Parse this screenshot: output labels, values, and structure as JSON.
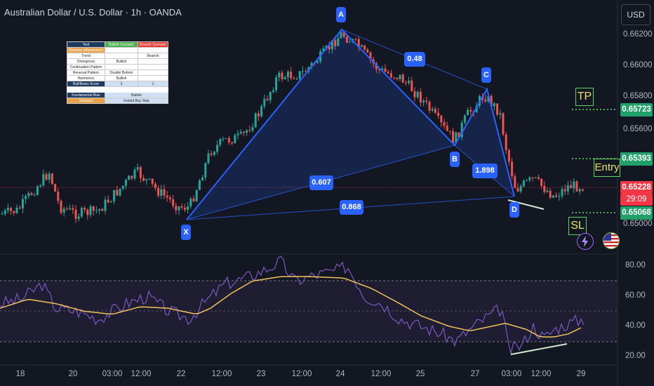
{
  "header": {
    "title": "Australian Dollar / U.S. Dollar · 1h · OANDA",
    "currency": "USD"
  },
  "price_axis": {
    "labels": [
      "0.66200",
      "0.66000",
      "0.65800",
      "0.65600",
      "0.65000"
    ],
    "tags": [
      {
        "text": "0.65723",
        "color": "#22a06b"
      },
      {
        "text": "0.65393",
        "color": "#22a06b"
      },
      {
        "text": "0.65228",
        "color": "#f23645"
      },
      {
        "text": "29:09",
        "color": "#f23645"
      },
      {
        "text": "0.65068",
        "color": "#22a06b"
      }
    ]
  },
  "rsi_axis": {
    "labels": [
      "80.00",
      "60.00",
      "40.00",
      "20.00"
    ]
  },
  "time_axis": {
    "labels": [
      "18",
      "20",
      "03:00",
      "12:00",
      "22",
      "12:00",
      "23",
      "12:00",
      "24",
      "12:00",
      "25",
      "27",
      "03:00",
      "12:00",
      "29"
    ]
  },
  "pattern_points": [
    "X",
    "A",
    "B",
    "C",
    "D"
  ],
  "ratios": [
    "0.48",
    "0.607",
    "1.898",
    "0.868"
  ],
  "trade_labels": {
    "tp": "TP",
    "entry": "Entry",
    "sl": "SL"
  },
  "icons": {
    "lightning": "lightning-icon",
    "flag": "us-flag-icon"
  },
  "colors": {
    "up": "#26a69a",
    "down": "#ef5350",
    "pattern": "#2962ff",
    "rsi": "#7e57c2",
    "rsi_ma": "#f0c35a"
  },
  "table": {
    "header": [
      "Tool",
      "Bullish Scenario",
      "Bearish Scenario"
    ],
    "rows": [
      [
        "Direction (Momentum)",
        "",
        ""
      ],
      [
        "Trend",
        "",
        "Bearish"
      ],
      [
        "Divergence",
        "Bullish",
        ""
      ],
      [
        "Continuation Pattern",
        "",
        ""
      ],
      [
        "Reversal Pattern",
        "Double Bottom",
        ""
      ],
      [
        "Harmonics",
        "Bullish",
        ""
      ],
      [
        "Bull/Bears Score",
        "3",
        "1"
      ],
      [
        "",
        "",
        ""
      ],
      [
        "Fundamental Bias",
        "Bullish",
        ""
      ],
      [
        "Scenario",
        "Instant Buy Stop",
        ""
      ]
    ]
  },
  "chart_data": {
    "type": "candlestick",
    "title": "Australian Dollar / U.S. Dollar · 1h · OANDA",
    "price_levels": {
      "tp": 0.65723,
      "entry": 0.65393,
      "current": 0.65228,
      "sl": 0.65068
    },
    "harmonic_pattern": {
      "X": 0.65,
      "A": 0.6623,
      "B": 0.6548,
      "C": 0.6586,
      "D": 0.6511,
      "ratios": {
        "AB_XA": 0.607,
        "BC_AB": 0.48,
        "CD_BC": 1.898,
        "XD_XA": 0.868
      }
    },
    "rsi": {
      "levels": [
        30,
        50,
        70
      ],
      "ylim": [
        15,
        85
      ],
      "divergence": "bullish"
    }
  }
}
